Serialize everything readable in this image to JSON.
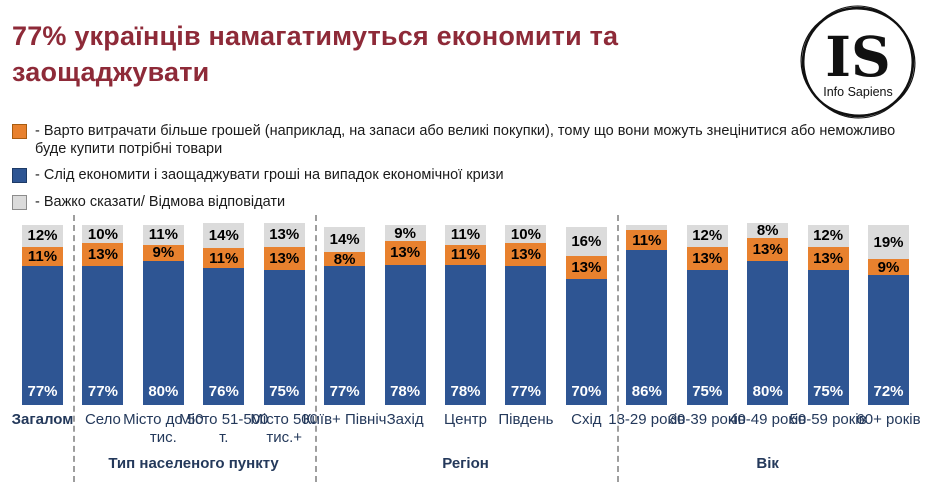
{
  "title": "77% українців намагатимуться економити та заощаджувати",
  "logo": {
    "initials": "IS",
    "name": "Info Sapiens"
  },
  "legend": [
    {
      "swatch": "orange",
      "color": "#E8812E",
      "border": "#a85c10",
      "label": "- Варто витрачати більше грошей (наприклад, на запаси або великі покупки), тому що вони можуть знецінитися або неможливо буде купити потрібні товари"
    },
    {
      "swatch": "blue",
      "color": "#2E5593",
      "border": "#1d3a66",
      "label": "- Слід економити і заощаджувати гроші на випадок економічної кризи"
    },
    {
      "swatch": "gray",
      "color": "#DBDBDB",
      "border": "#8c8c8c",
      "label": "- Важко сказати/ Відмова відповідати"
    }
  ],
  "chart_data": {
    "type": "bar",
    "stacked": true,
    "unit": "%",
    "ylim": [
      0,
      100
    ],
    "colors": {
      "blue": "#2E5593",
      "orange": "#E8812E",
      "gray": "#DBDBDB",
      "title": "#8E2A38",
      "category_text": "#24395B",
      "value_on_blue": "#ffffff",
      "value_on_light": "#000000"
    },
    "series_meaning": {
      "blue": "Слід економити і заощаджувати гроші на випадок економічної кризи",
      "orange": "Варто витрачати більше грошей (на запаси або великі покупки)",
      "gray": "Важко сказати/ Відмова відповідати"
    },
    "groups": [
      {
        "label": "",
        "bars": [
          {
            "category": "Загалом",
            "bold": true,
            "blue": 77,
            "orange": 11,
            "gray": 12
          }
        ]
      },
      {
        "label": "Тип населеного пункту",
        "bars": [
          {
            "category": "Село",
            "blue": 77,
            "orange": 13,
            "gray": 10
          },
          {
            "category": "Місто до 50 тис.",
            "blue": 80,
            "orange": 9,
            "gray": 11
          },
          {
            "category": "Місто 51-500 т.",
            "blue": 76,
            "orange": 11,
            "gray": 14
          },
          {
            "category": "Місто 500 тис.+",
            "blue": 75,
            "orange": 13,
            "gray": 13
          }
        ]
      },
      {
        "label": "Регіон",
        "bars": [
          {
            "category": "Київ+ Північ",
            "blue": 77,
            "orange": 8,
            "gray": 14
          },
          {
            "category": "Захід",
            "blue": 78,
            "orange": 13,
            "gray": 9
          },
          {
            "category": "Центр",
            "blue": 78,
            "orange": 11,
            "gray": 11
          },
          {
            "category": "Південь",
            "blue": 77,
            "orange": 13,
            "gray": 10
          },
          {
            "category": "Схід",
            "blue": 70,
            "orange": 13,
            "gray": 16
          }
        ]
      },
      {
        "label": "Вік",
        "bars": [
          {
            "category": "18-29 років",
            "blue": 86,
            "orange": 11,
            "gray": 3,
            "gray_labeled": false
          },
          {
            "category": "30-39 років",
            "blue": 75,
            "orange": 13,
            "gray": 12
          },
          {
            "category": "40-49 років",
            "blue": 80,
            "orange": 13,
            "gray": 8
          },
          {
            "category": "50-59 років",
            "blue": 75,
            "orange": 13,
            "gray": 12
          },
          {
            "category": "60+ років",
            "blue": 72,
            "orange": 9,
            "gray": 19
          }
        ]
      }
    ]
  }
}
